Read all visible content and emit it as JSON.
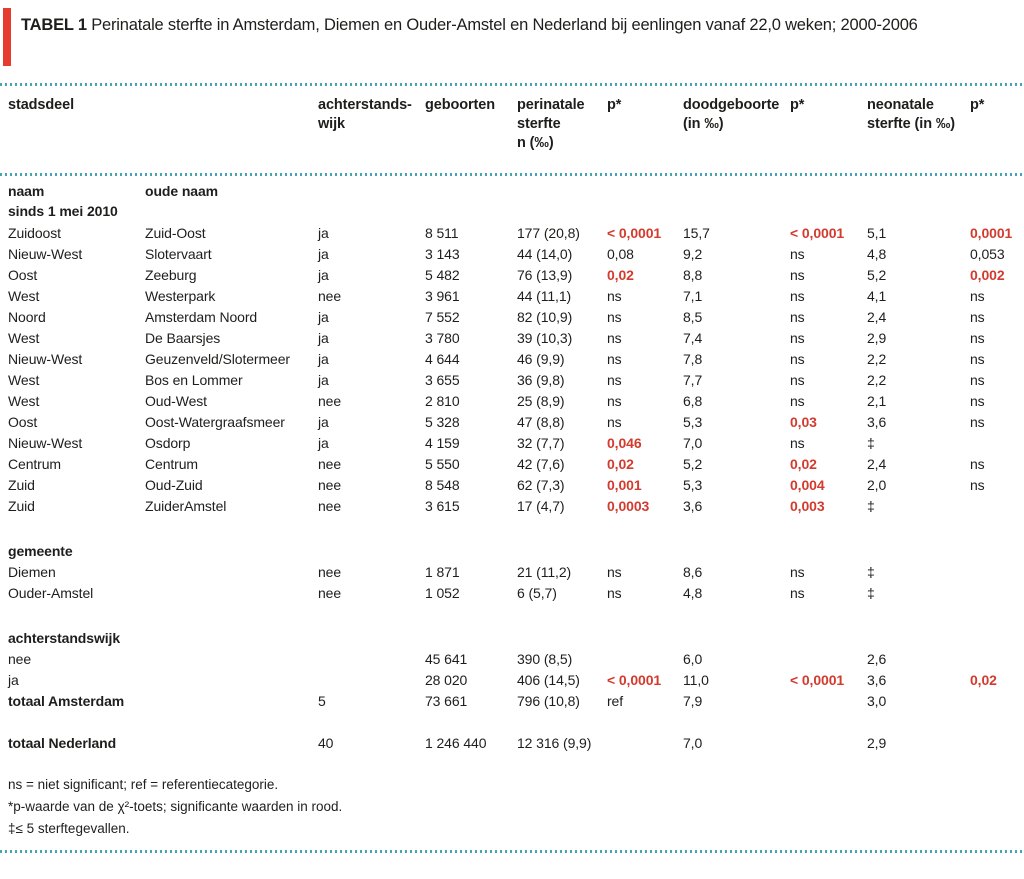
{
  "title": {
    "label": "TABEL 1",
    "text": "Perinatale sterfte in Amsterdam, Diemen en Ouder-Amstel en Nederland bij eenlingen vanaf 22,0 weken; 2000-2006"
  },
  "colors": {
    "accent_bar": "#e63c30",
    "significant_red": "#d23b2e",
    "dotted_line": "#46a5b5",
    "text": "#1e1e1c"
  },
  "table": {
    "header": [
      {
        "label": "stadsdeel",
        "span": 2
      },
      {
        "label": "achterstands-\nwijk"
      },
      {
        "label": "geboorten"
      },
      {
        "label": "perinatale\nsterfte\nn (‰)"
      },
      {
        "label": "p*"
      },
      {
        "label": "doodgeboorte\n(in ‰)"
      },
      {
        "label": "p*"
      },
      {
        "label": "neonatale\nsterfte (in ‰)"
      },
      {
        "label": "p*"
      }
    ],
    "rows": [
      {
        "kind": "subheader",
        "cells": [
          {
            "t": "naam\nsinds 1 mei 2010",
            "bold": true
          },
          {
            "t": "oude naam",
            "bold": true
          },
          "",
          "",
          "",
          "",
          "",
          "",
          "",
          ""
        ]
      },
      {
        "cells": [
          "Zuidoost",
          "Zuid-Oost",
          "ja",
          "8 511",
          "177 (20,8)",
          {
            "t": "< 0,0001",
            "red": true
          },
          "15,7",
          {
            "t": "< 0,0001",
            "red": true
          },
          "5,1",
          {
            "t": "0,0001",
            "red": true
          }
        ]
      },
      {
        "cells": [
          "Nieuw-West",
          "Slotervaart",
          "ja",
          "3 143",
          "44 (14,0)",
          "0,08",
          "9,2",
          "ns",
          "4,8",
          "0,053"
        ]
      },
      {
        "cells": [
          "Oost",
          "Zeeburg",
          "ja",
          "5 482",
          "76 (13,9)",
          {
            "t": "0,02",
            "red": true
          },
          "8,8",
          "ns",
          "5,2",
          {
            "t": "0,002",
            "red": true
          }
        ]
      },
      {
        "cells": [
          "West",
          "Westerpark",
          "nee",
          "3 961",
          "44 (11,1)",
          "ns",
          "7,1",
          "ns",
          "4,1",
          "ns"
        ]
      },
      {
        "cells": [
          "Noord",
          "Amsterdam Noord",
          "ja",
          "7 552",
          "82 (10,9)",
          "ns",
          "8,5",
          "ns",
          "2,4",
          "ns"
        ]
      },
      {
        "cells": [
          "West",
          "De Baarsjes",
          "ja",
          "3 780",
          "39 (10,3)",
          "ns",
          "7,4",
          "ns",
          "2,9",
          "ns"
        ]
      },
      {
        "cells": [
          "Nieuw-West",
          "Geuzenveld/Slotermeer",
          "ja",
          "4 644",
          "46 (9,9)",
          "ns",
          "7,8",
          "ns",
          "2,2",
          "ns"
        ]
      },
      {
        "cells": [
          "West",
          "Bos en Lommer",
          "ja",
          "3 655",
          "36 (9,8)",
          "ns",
          "7,7",
          "ns",
          "2,2",
          "ns"
        ]
      },
      {
        "cells": [
          "West",
          "Oud-West",
          "nee",
          "2 810",
          "25 (8,9)",
          "ns",
          "6,8",
          "ns",
          "2,1",
          "ns"
        ]
      },
      {
        "cells": [
          "Oost",
          "Oost-Watergraafsmeer",
          "ja",
          "5 328",
          "47 (8,8)",
          "ns",
          "5,3",
          {
            "t": "0,03",
            "red": true
          },
          "3,6",
          "ns"
        ]
      },
      {
        "cells": [
          "Nieuw-West",
          "Osdorp",
          "ja",
          "4 159",
          "32 (7,7)",
          {
            "t": "0,046",
            "red": true
          },
          "7,0",
          "ns",
          "‡",
          ""
        ]
      },
      {
        "cells": [
          "Centrum",
          "Centrum",
          "nee",
          "5 550",
          "42 (7,6)",
          {
            "t": "0,02",
            "red": true
          },
          "5,2",
          {
            "t": "0,02",
            "red": true
          },
          "2,4",
          "ns"
        ]
      },
      {
        "cells": [
          "Zuid",
          "Oud-Zuid",
          "nee",
          "8 548",
          "62 (7,3)",
          {
            "t": "0,001",
            "red": true
          },
          "5,3",
          {
            "t": "0,004",
            "red": true
          },
          "2,0",
          "ns"
        ]
      },
      {
        "cells": [
          "Zuid",
          "ZuiderAmstel",
          "nee",
          "3 615",
          "17 (4,7)",
          {
            "t": "0,0003",
            "red": true
          },
          "3,6",
          {
            "t": "0,003",
            "red": true
          },
          "‡",
          ""
        ]
      },
      {
        "kind": "section",
        "label": "gemeente"
      },
      {
        "cells": [
          "Diemen",
          "",
          "nee",
          "1 871",
          "21 (11,2)",
          "ns",
          "8,6",
          "ns",
          "‡",
          ""
        ]
      },
      {
        "cells": [
          "Ouder-Amstel",
          "",
          "nee",
          "1 052",
          "6 (5,7)",
          "ns",
          "4,8",
          "ns",
          "‡",
          ""
        ]
      },
      {
        "kind": "section",
        "label": "achterstandswijk"
      },
      {
        "cells": [
          "nee",
          "",
          "",
          "45 641",
          "390 (8,5)",
          "",
          "6,0",
          "",
          "2,6",
          ""
        ]
      },
      {
        "cells": [
          "ja",
          "",
          "",
          "28 020",
          "406 (14,5)",
          {
            "t": "< 0,0001",
            "red": true
          },
          "11,0",
          {
            "t": "< 0,0001",
            "red": true
          },
          "3,6",
          {
            "t": "0,02",
            "red": true
          }
        ]
      },
      {
        "cells": [
          {
            "t": "totaal Amsterdam",
            "bold": true
          },
          "",
          "5",
          "73 661",
          "796 (10,8)",
          "ref",
          "7,9",
          "",
          "3,0",
          ""
        ]
      },
      {
        "kind": "spacer"
      },
      {
        "cells": [
          {
            "t": "totaal Nederland",
            "bold": true
          },
          "",
          "40",
          "1 246 440",
          "12 316 (9,9)",
          "",
          "7,0",
          "",
          "2,9",
          ""
        ]
      }
    ]
  },
  "footnotes": [
    "ns = niet significant; ref = referentiecategorie.",
    "*p-waarde van de χ²-toets; significante waarden in rood.",
    "‡≤ 5 sterftegevallen."
  ]
}
